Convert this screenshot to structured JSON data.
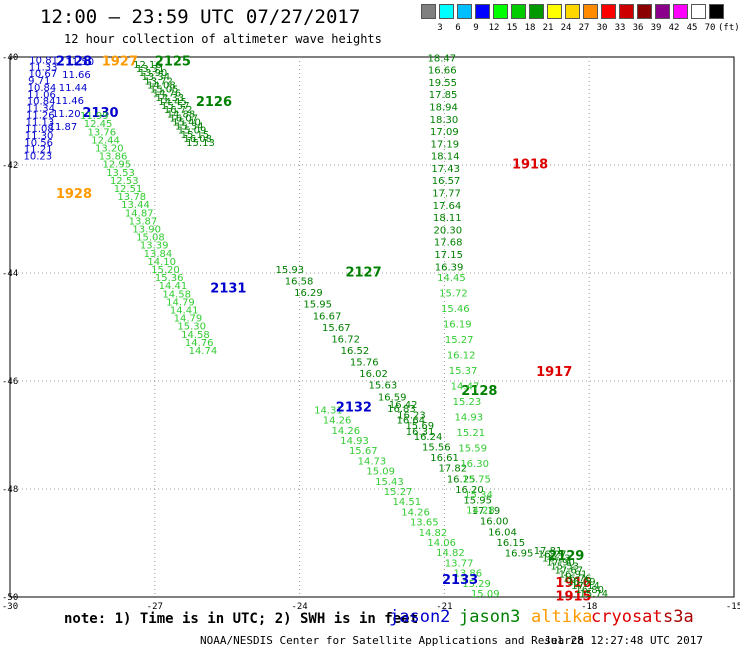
{
  "header": {
    "title": "12:00 – 23:59 UTC 07/27/2017",
    "subtitle": "12 hour collection of altimeter wave heights"
  },
  "color_scale": {
    "colors": [
      "#808080",
      "#00ffff",
      "#00bfff",
      "#0000ff",
      "#00ff00",
      "#00cc00",
      "#009900",
      "#ffff00",
      "#ffd700",
      "#ff8c00",
      "#ff0000",
      "#cc0000",
      "#8b0000",
      "#8b008b",
      "#ff00ff",
      "#ffffff",
      "#000000"
    ],
    "labels": [
      "3",
      "6",
      "9",
      "12",
      "15",
      "18",
      "21",
      "24",
      "27",
      "30",
      "33",
      "36",
      "39",
      "42",
      "45",
      "70",
      "(ft)"
    ]
  },
  "axes": {
    "lon_labels": [
      "-30",
      "-27",
      "-24",
      "-21",
      "-18",
      "-15"
    ],
    "lat_labels": [
      "-40",
      "-42",
      "-44",
      "-46",
      "-48",
      "-50"
    ]
  },
  "colors": {
    "jason2": "#0000cc",
    "jason3": "#008000",
    "jason3_light": "#33cc33",
    "altika": "#ff9900",
    "cryosat": "#dd0000",
    "s3a": "#aa0000"
  },
  "tracks": [
    {
      "label": "2128",
      "sat": "jason2",
      "label_lon": -29.05,
      "label_lat": -40.05,
      "start": [
        -29.6,
        -40.12
      ],
      "end": [
        -29.72,
        -41.9
      ],
      "color": "jason2",
      "values": [
        "10.81",
        "11.33",
        "10.67",
        "9.71",
        "10.84",
        "11.06",
        "10.84",
        "11.34",
        "11.26",
        "11.13",
        "11.08",
        "11.30",
        "10.56",
        "11.21",
        "10.23"
      ]
    },
    {
      "label": "2130",
      "sat": "jason2",
      "label_lon": -28.5,
      "label_lat": -41.0,
      "start": [
        -28.85,
        -40.15
      ],
      "end": [
        -29.2,
        -41.35
      ],
      "color": "jason2",
      "values": [
        "11.50",
        "11.66",
        "11.44",
        "11.46",
        "11.20",
        "11.87"
      ]
    },
    {
      "label": "1928",
      "sat": "altika",
      "label_lon": -29.05,
      "label_lat": -42.5,
      "color": "altika",
      "values": []
    },
    {
      "label": "1927",
      "sat": "altika",
      "label_lon": -28.1,
      "label_lat": -40.05,
      "color": "altika",
      "values": []
    },
    {
      "label": "2125",
      "sat": "jason3",
      "label_lon": -27.0,
      "label_lat": -40.05,
      "start": [
        -27.45,
        -40.2
      ],
      "end": [
        -26.35,
        -41.65
      ],
      "color": "jason3",
      "values": [
        "12.16",
        "13.31",
        "13.90",
        "13.34",
        "13.72",
        "14.08",
        "15.05",
        "14.76",
        "14.33",
        "14.45",
        "15.57",
        "16.72",
        "14.88",
        "16.07",
        "15.40",
        "15.34",
        "15.09",
        "15.15",
        "16.08",
        "15.13"
      ]
    },
    {
      "label": "2126",
      "sat": "jason3",
      "label_lon": -26.15,
      "label_lat": -40.8,
      "color": "jason3",
      "values": []
    },
    {
      "label": "2131",
      "sat": "jason2",
      "label_lon": -25.85,
      "label_lat": -44.25,
      "start": [
        -28.55,
        -41.15
      ],
      "end": [
        -26.3,
        -45.5
      ],
      "color": "jason3_light",
      "values": [
        "11.99",
        "12.45",
        "13.76",
        "12.44",
        "13.20",
        "13.86",
        "12.95",
        "13.53",
        "12.53",
        "12.51",
        "13.78",
        "13.44",
        "14.87",
        "13.87",
        "13.90",
        "15.08",
        "13.39",
        "13.84",
        "14.10",
        "15.20",
        "15.36",
        "14.41",
        "14.58",
        "14.79",
        "14.41",
        "14.79",
        "15.30",
        "14.58",
        "14.76",
        "14.74"
      ]
    },
    {
      "label": "2127",
      "sat": "jason3",
      "label_lon": -23.05,
      "label_lat": -43.95,
      "start": [
        -24.5,
        -44.0
      ],
      "end": [
        -21.8,
        -47.0
      ],
      "color": "jason3",
      "values": [
        "15.93",
        "16.58",
        "16.29",
        "15.95",
        "16.67",
        "15.67",
        "16.72",
        "16.52",
        "15.76",
        "16.02",
        "15.63",
        "16.59",
        "16.83",
        "16.64",
        "16.31"
      ]
    },
    {
      "label": "2132",
      "sat": "jason2",
      "label_lon": -23.25,
      "label_lat": -46.45,
      "start": [
        -23.7,
        -46.6
      ],
      "end": [
        -20.45,
        -50.0
      ],
      "color": "jason3_light",
      "values": [
        "14.31",
        "14.26",
        "14.26",
        "14.93",
        "15.67",
        "14.73",
        "15.09",
        "15.43",
        "15.27",
        "14.51",
        "14.26",
        "13.65",
        "14.82",
        "14.06",
        "14.82",
        "13.77",
        "13.86",
        "15.29",
        "15.09"
      ]
    },
    {
      "label": "2128",
      "sat": "jason3",
      "label_lon": -20.65,
      "label_lat": -46.15,
      "start": [
        -22.15,
        -46.5
      ],
      "end": [
        -19.75,
        -49.25
      ],
      "color": "jason3",
      "values": [
        "16.42",
        "16.23",
        "15.69",
        "16.24",
        "15.56",
        "16.61",
        "17.82",
        "16.25",
        "16.20",
        "15.95",
        "17.19",
        "16.00",
        "16.04",
        "16.15",
        "16.95"
      ]
    },
    {
      "label": "1918",
      "sat": "cryosat",
      "label_lon": -19.6,
      "label_lat": -41.95,
      "color": "cryosat",
      "values": []
    },
    {
      "label": "1917",
      "sat": "cryosat",
      "label_lon": -19.1,
      "label_lat": -45.8,
      "color": "cryosat",
      "values": []
    },
    {
      "label": "1916",
      "sat": "cryosat",
      "label_lon": -18.7,
      "label_lat": -49.7,
      "color": "cryosat",
      "values": []
    },
    {
      "label": "1915",
      "sat": "cryosat",
      "label_lon": -18.7,
      "label_lat": -49.95,
      "color": "cryosat",
      "values": []
    },
    {
      "label": "2129",
      "sat": "jason3",
      "label_lon": -18.85,
      "label_lat": -49.2,
      "color": "jason3",
      "values": []
    },
    {
      "label": "2133",
      "sat": "jason2",
      "label_lon": -21.05,
      "label_lat": -49.65,
      "color": "jason2",
      "values": []
    },
    {
      "label": "",
      "sat": "jason3",
      "color": "jason3",
      "start": [
        -21.35,
        -40.08
      ],
      "end": [
        -21.2,
        -43.95
      ],
      "values": [
        "18.47",
        "16.66",
        "19.55",
        "17.85",
        "18.94",
        "18.30",
        "17.09",
        "17.19",
        "18.14",
        "17.43",
        "16.57",
        "17.77",
        "17.64",
        "18.11",
        "20.30",
        "17.68",
        "17.15",
        "16.39"
      ]
    },
    {
      "label": "",
      "sat": "jason3",
      "color": "jason3_light",
      "start": [
        -21.15,
        -44.15
      ],
      "end": [
        -20.55,
        -48.45
      ],
      "values": [
        "14.45",
        "15.72",
        "15.46",
        "16.19",
        "15.27",
        "16.12",
        "15.37",
        "14.47",
        "15.23",
        "14.93",
        "15.21",
        "15.59",
        "16.30",
        "15.75",
        "15.34",
        "14.28"
      ]
    },
    {
      "label": "",
      "sat": "jason3",
      "color": "jason3",
      "start": [
        -19.15,
        -49.2
      ],
      "end": [
        -18.2,
        -50.0
      ],
      "values": [
        "17.81",
        "16.27",
        "16.23",
        "17.90",
        "15.53",
        "17.67",
        "16.91",
        "16.76",
        "16.09",
        "17.14",
        "16.80",
        "15.74"
      ]
    }
  ],
  "footer": {
    "note": "note: 1) Time is in UTC; 2) SWH is in feet",
    "satellites": [
      {
        "name": "jason2",
        "color": "#0000cc"
      },
      {
        "name": "jason3",
        "color": "#008000"
      },
      {
        "name": "altika",
        "color": "#ff9900"
      },
      {
        "name": "cryosat",
        "color": "#dd0000"
      },
      {
        "name": "s3a",
        "color": "#aa0000"
      }
    ],
    "credit": "NOAA/NESDIS Center for Satellite Applications and Research",
    "timestamp": "Jul 28 12:27:48 UTC 2017"
  }
}
